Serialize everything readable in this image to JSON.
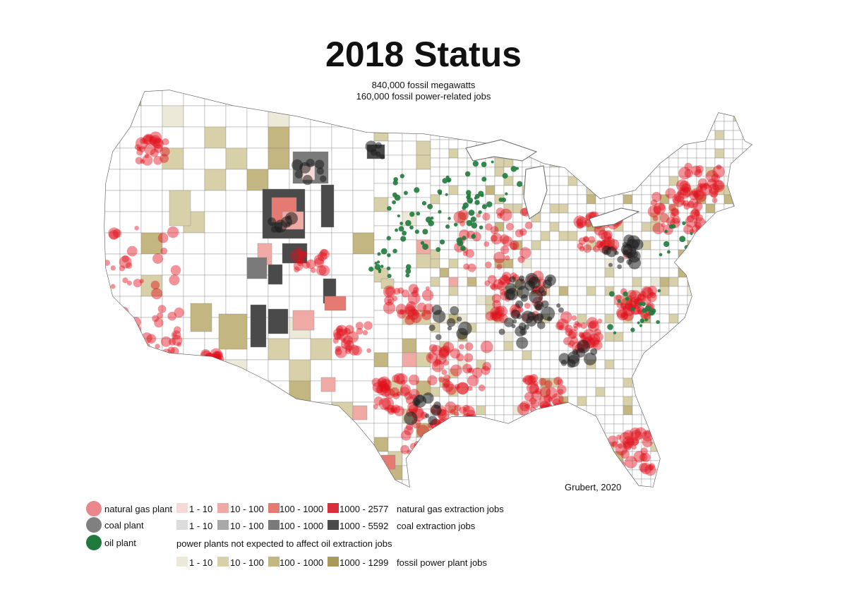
{
  "title": "2018 Status",
  "subtitle_lines": [
    "840,000 fossil megawatts",
    "160,000 fossil power-related jobs"
  ],
  "credit": "Grubert, 2020",
  "colors": {
    "gas_plant": "#e0101a",
    "coal_plant": "#1c1c1c",
    "oil_plant": "#1f7a3c",
    "county_border": "#8a8a8a",
    "gas_jobs": [
      "#f6d9d6",
      "#f0aaa5",
      "#e57a72",
      "#d8303a"
    ],
    "coal_jobs": [
      "#dcdcdc",
      "#a8a8a8",
      "#7a7a7a",
      "#4a4a4a"
    ],
    "power_jobs": [
      "#ece9d8",
      "#d8d0a8",
      "#c4b680",
      "#a89a58"
    ]
  },
  "legend": {
    "plants": [
      {
        "label": "natural gas plant",
        "color_key": "gas_plant"
      },
      {
        "label": "coal plant",
        "color_key": "coal_plant"
      },
      {
        "label": "oil plant",
        "color_key": "oil_plant"
      }
    ],
    "gas_jobs": {
      "bins": [
        "1 - 10",
        "10 - 100",
        "100 - 1000",
        "1000 - 2577"
      ],
      "label": "natural gas extraction jobs"
    },
    "coal_jobs": {
      "bins": [
        "1 - 10",
        "10 - 100",
        "100 - 1000",
        "1000 - 5592"
      ],
      "label": "coal extraction jobs"
    },
    "oil_note": "power plants not expected to affect oil extraction jobs",
    "power_jobs": {
      "bins": [
        "1 - 10",
        "10 - 100",
        "100 - 1000",
        "1000 - 1299"
      ],
      "label": "fossil power plant jobs"
    }
  }
}
